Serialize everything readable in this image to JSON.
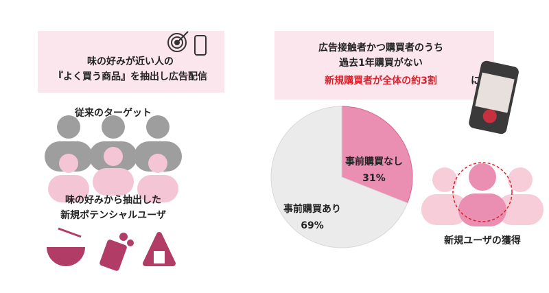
{
  "left_panel": {
    "headline": [
      "味の好みが近い人の",
      "『よく買う商品』を抽出し広告配信"
    ],
    "current_target": "従来のターゲット",
    "new_target": [
      "味の好みから抽出した",
      "新規ポテンシャルユーザ"
    ]
  },
  "right_panel": {
    "headline": [
      "広告接触者かつ購買者のうち",
      "過去1年購買がない"
    ],
    "highlight": "新規購買者が全体の約3割",
    "highlight_suffix": "に",
    "new_users": "新規ユーザの獲得"
  },
  "chart_data": {
    "type": "pie",
    "categories": [
      "事前購買なし",
      "事前購買あり"
    ],
    "values": [
      31,
      69
    ],
    "value_labels": [
      "31%",
      "69%"
    ],
    "colors": [
      "#ea8fb1",
      "#ebebeb"
    ]
  }
}
